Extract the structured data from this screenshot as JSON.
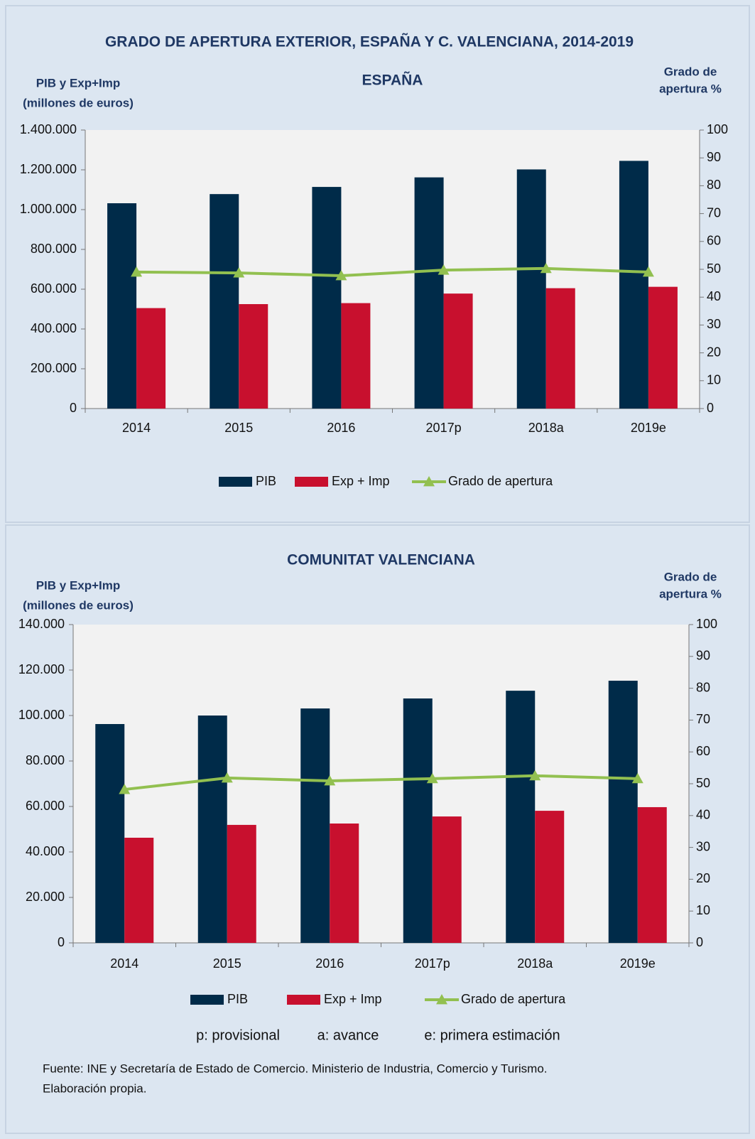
{
  "title": "GRADO DE APERTURA EXTERIOR, ESPAÑA Y C. VALENCIANA, 2014-2019",
  "chart_data": [
    {
      "type": "bar",
      "title": "ESPAÑA",
      "ylabel": [
        "PIB y Exp+Imp",
        "(millones de euros)"
      ],
      "y2label": [
        "Grado de",
        "apertura %"
      ],
      "categories": [
        "2014",
        "2015",
        "2016",
        "2017p",
        "2018a",
        "2019e"
      ],
      "series": [
        {
          "name": "PIB",
          "type": "bar",
          "color": "#002b49",
          "values": [
            1032000,
            1078000,
            1114000,
            1162000,
            1202000,
            1245000
          ]
        },
        {
          "name": "Exp + Imp",
          "type": "bar",
          "color": "#c8102e",
          "values": [
            505000,
            525000,
            530000,
            578000,
            605000,
            612000
          ]
        },
        {
          "name": "Grado de apertura",
          "type": "line",
          "axis": "y2",
          "color": "#92c050",
          "values": [
            49.0,
            48.7,
            47.7,
            49.7,
            50.3,
            49.0
          ]
        }
      ],
      "ylim": [
        0,
        1400000
      ],
      "yticks": [
        0,
        {
          "value": 200000,
          "label": "200.000"
        },
        {
          "value": 400000,
          "label": "400.000"
        },
        {
          "value": 600000,
          "label": "600.000"
        },
        {
          "value": 800000,
          "label": "800.000"
        },
        {
          "value": 1000000,
          "label": "1.000.000"
        },
        {
          "value": 1200000,
          "label": "1.200.000"
        },
        {
          "value": 1400000,
          "label": "1.400.000"
        }
      ],
      "y2lim": [
        0,
        100
      ],
      "y2ticks": [
        0,
        10,
        20,
        30,
        40,
        50,
        60,
        70,
        80,
        90,
        100
      ],
      "legend": "bottom"
    },
    {
      "type": "bar",
      "title": "COMUNITAT VALENCIANA",
      "ylabel": [
        "PIB y Exp+Imp",
        "(millones de euros)"
      ],
      "y2label": [
        "Grado de",
        "apertura %"
      ],
      "categories": [
        "2014",
        "2015",
        "2016",
        "2017p",
        "2018a",
        "2019e"
      ],
      "series": [
        {
          "name": "PIB",
          "type": "bar",
          "color": "#002b49",
          "values": [
            96250,
            100000,
            103100,
            107500,
            110900,
            115300
          ]
        },
        {
          "name": "Exp + Imp",
          "type": "bar",
          "color": "#c8102e",
          "values": [
            46250,
            51900,
            52500,
            55600,
            58100,
            59700
          ]
        },
        {
          "name": "Grado de apertura",
          "type": "line",
          "axis": "y2",
          "color": "#92c050",
          "values": [
            48.2,
            51.8,
            50.9,
            51.6,
            52.5,
            51.6
          ]
        }
      ],
      "ylim": [
        0,
        140000
      ],
      "yticks": [
        0,
        {
          "value": 20000,
          "label": "20.000"
        },
        {
          "value": 40000,
          "label": "40.000"
        },
        {
          "value": 60000,
          "label": "60.000"
        },
        {
          "value": 80000,
          "label": "80.000"
        },
        {
          "value": 100000,
          "label": "100.000"
        },
        {
          "value": 120000,
          "label": "120.000"
        },
        {
          "value": 140000,
          "label": "140.000"
        }
      ],
      "y2lim": [
        0,
        100
      ],
      "y2ticks": [
        0,
        10,
        20,
        30,
        40,
        50,
        60,
        70,
        80,
        90,
        100
      ],
      "legend": "bottom"
    }
  ],
  "notes": [
    "p: provisional",
    "a: avance",
    "e: primera estimación"
  ],
  "source": [
    "Fuente: INE y Secretaría de Estado de Comercio. Ministerio de Industria, Comercio y Turismo.",
    "Elaboración propia."
  ]
}
